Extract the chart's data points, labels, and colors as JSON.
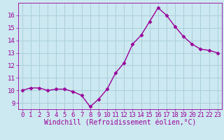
{
  "x": [
    0,
    1,
    2,
    3,
    4,
    5,
    6,
    7,
    8,
    9,
    10,
    11,
    12,
    13,
    14,
    15,
    16,
    17,
    18,
    19,
    20,
    21,
    22,
    23
  ],
  "y": [
    10.0,
    10.2,
    10.2,
    10.0,
    10.1,
    10.1,
    9.9,
    9.6,
    8.7,
    9.3,
    10.1,
    11.4,
    12.2,
    13.7,
    14.4,
    15.5,
    16.6,
    16.0,
    15.1,
    14.3,
    13.7,
    13.3,
    13.2,
    13.0
  ],
  "line_color": "#990099",
  "marker": "D",
  "marker_size": 2.5,
  "xlabel": "Windchill (Refroidissement éolien,°C)",
  "xlabel_fontsize": 7,
  "ylim": [
    8.5,
    17.0
  ],
  "yticks": [
    9,
    10,
    11,
    12,
    13,
    14,
    15,
    16
  ],
  "xticks": [
    0,
    1,
    2,
    3,
    4,
    5,
    6,
    7,
    8,
    9,
    10,
    11,
    12,
    13,
    14,
    15,
    16,
    17,
    18,
    19,
    20,
    21,
    22,
    23
  ],
  "background_color": "#cce8f0",
  "grid_color": "#aad0dc",
  "tick_fontsize": 6.5,
  "line_width": 1.0
}
